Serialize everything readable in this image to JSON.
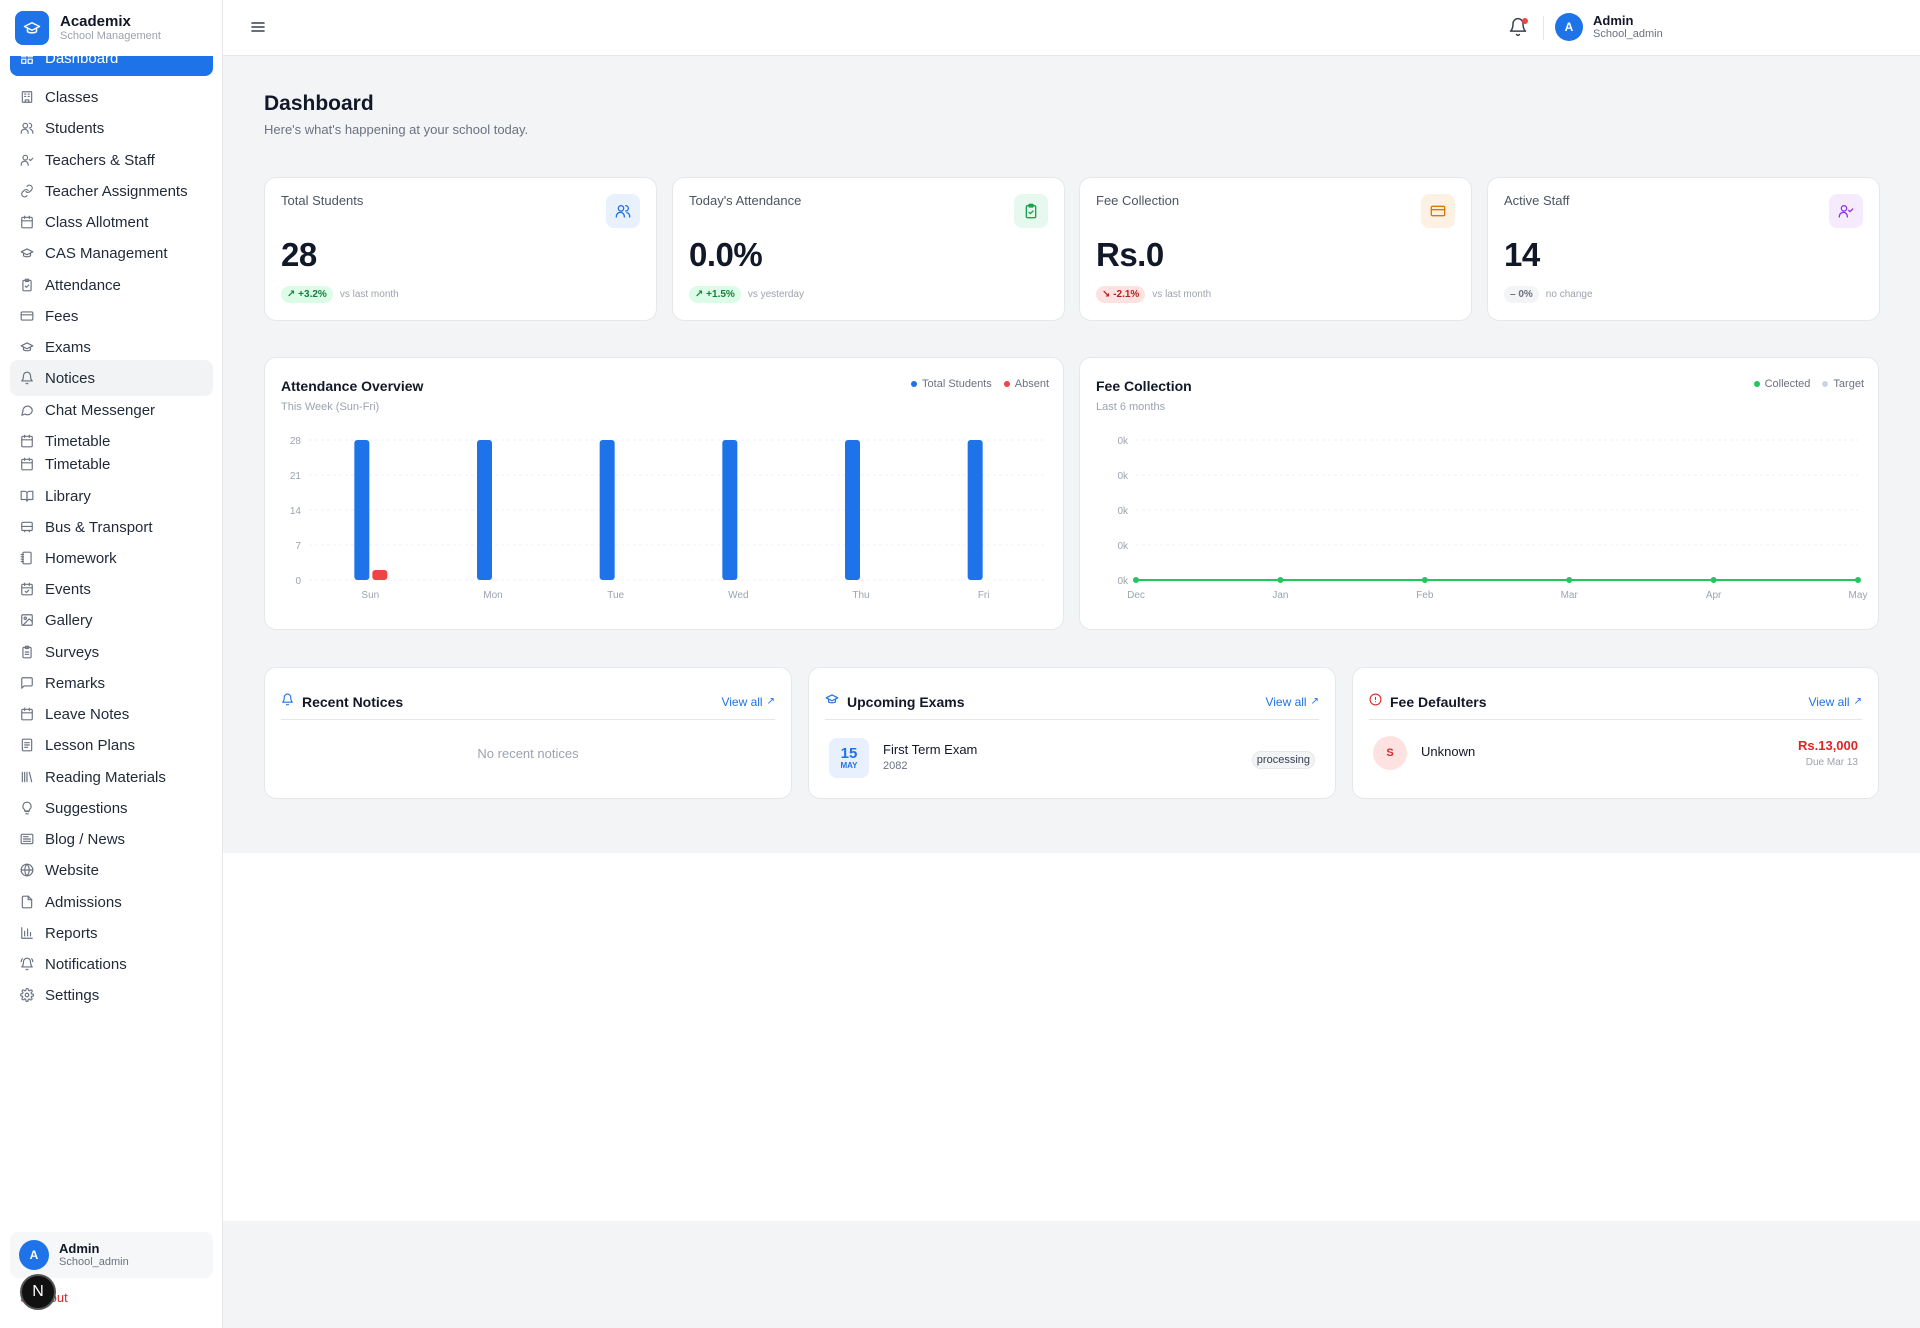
{
  "brand": {
    "name": "Academix",
    "subtitle": "School Management"
  },
  "sidebar": {
    "items": [
      {
        "label": "Dashboard",
        "icon": "dashboard-icon"
      },
      {
        "label": "Classes",
        "icon": "building-icon"
      },
      {
        "label": "Students",
        "icon": "users-icon"
      },
      {
        "label": "Teachers & Staff",
        "icon": "user-check-icon"
      },
      {
        "label": "Teacher Assignments",
        "icon": "link-icon"
      },
      {
        "label": "Class Allotment",
        "icon": "calendar-icon"
      },
      {
        "label": "CAS Management",
        "icon": "graduation-cap-icon"
      },
      {
        "label": "Attendance",
        "icon": "clipboard-check-icon"
      },
      {
        "label": "Fees",
        "icon": "credit-card-icon"
      },
      {
        "label": "Exams",
        "icon": "graduation-cap-icon"
      },
      {
        "label": "Notices",
        "icon": "bell-icon"
      },
      {
        "label": "Chat Messenger",
        "icon": "message-icon"
      },
      {
        "label": "Timetable",
        "icon": "calendar-icon"
      },
      {
        "label": "Timetable",
        "icon": "calendar-icon"
      },
      {
        "label": "Library",
        "icon": "book-icon"
      },
      {
        "label": "Bus & Transport",
        "icon": "bus-icon"
      },
      {
        "label": "Homework",
        "icon": "notebook-icon"
      },
      {
        "label": "Events",
        "icon": "calendar-check-icon"
      },
      {
        "label": "Gallery",
        "icon": "image-icon"
      },
      {
        "label": "Surveys",
        "icon": "clipboard-icon"
      },
      {
        "label": "Remarks",
        "icon": "message-square-icon"
      },
      {
        "label": "Leave Notes",
        "icon": "calendar-icon"
      },
      {
        "label": "Lesson Plans",
        "icon": "file-text-icon"
      },
      {
        "label": "Reading Materials",
        "icon": "library-icon"
      },
      {
        "label": "Suggestions",
        "icon": "lightbulb-icon"
      },
      {
        "label": "Blog / News",
        "icon": "newspaper-icon"
      },
      {
        "label": "Website",
        "icon": "globe-icon"
      },
      {
        "label": "Admissions",
        "icon": "file-icon"
      },
      {
        "label": "Reports",
        "icon": "bar-chart-icon"
      },
      {
        "label": "Notifications",
        "icon": "bell-ring-icon"
      },
      {
        "label": "Settings",
        "icon": "gear-icon"
      }
    ],
    "active_index": 0,
    "hover_index": 10,
    "user": {
      "initial": "A",
      "name": "Admin",
      "role": "School_admin"
    },
    "signout_label": "Sign out"
  },
  "header": {
    "user": {
      "initial": "A",
      "name": "Admin",
      "role": "School_admin"
    }
  },
  "page": {
    "title": "Dashboard",
    "subtitle": "Here's what's happening at your school today."
  },
  "stats": [
    {
      "label": "Total Students",
      "value": "28",
      "change": "+3.2%",
      "trend": "up",
      "note": "vs last month",
      "icon": "users-icon",
      "icon_bg": "#e8f1fd",
      "icon_color": "#1e73e8"
    },
    {
      "label": "Today's Attendance",
      "value": "0.0%",
      "change": "+1.5%",
      "trend": "up",
      "note": "vs yesterday",
      "icon": "clipboard-check-icon",
      "icon_bg": "#e7f8ee",
      "icon_color": "#16a34a"
    },
    {
      "label": "Fee Collection",
      "value": "Rs.0",
      "change": "-2.1%",
      "trend": "down",
      "note": "vs last month",
      "icon": "credit-card-icon",
      "icon_bg": "#fdf1e3",
      "icon_color": "#d97706"
    },
    {
      "label": "Active Staff",
      "value": "14",
      "change": "0%",
      "trend": "flat",
      "note": "no change",
      "icon": "user-check-icon",
      "icon_bg": "#f5ebfc",
      "icon_color": "#9333ea"
    }
  ],
  "attendance_chart": {
    "title": "Attendance Overview",
    "subtitle": "This Week (Sun-Fri)",
    "legend": [
      {
        "label": "Total Students",
        "color": "#1e73e8"
      },
      {
        "label": "Absent",
        "color": "#ef4444"
      }
    ]
  },
  "fee_chart": {
    "title": "Fee Collection",
    "subtitle": "Last 6 months",
    "legend": [
      {
        "label": "Collected",
        "color": "#22c55e"
      },
      {
        "label": "Target",
        "color": "#cbd5e1"
      }
    ]
  },
  "chart_data": [
    {
      "type": "bar",
      "title": "Attendance Overview",
      "categories": [
        "Sun",
        "Mon",
        "Tue",
        "Wed",
        "Thu",
        "Fri"
      ],
      "yticks": [
        "28",
        "21",
        "14",
        "7",
        "0"
      ],
      "ylim": [
        0,
        28
      ],
      "grid": true,
      "legend": "top-right",
      "series": [
        {
          "name": "Total Students",
          "values": [
            28,
            28,
            28,
            28,
            28,
            28
          ],
          "color": "#1e73e8"
        },
        {
          "name": "Absent",
          "values": [
            2,
            0,
            0,
            0,
            0,
            0
          ],
          "color": "#ef4444"
        }
      ]
    },
    {
      "type": "line",
      "title": "Fee Collection",
      "categories": [
        "Dec",
        "Jan",
        "Feb",
        "Mar",
        "Apr",
        "May"
      ],
      "yticks": [
        "0k",
        "0k",
        "0k",
        "0k",
        "0k"
      ],
      "ylim": [
        0,
        1
      ],
      "grid": true,
      "legend": "top-right",
      "series": [
        {
          "name": "Collected",
          "values": [
            0,
            0,
            0,
            0,
            0,
            0
          ],
          "color": "#22c55e"
        },
        {
          "name": "Target",
          "values": [
            0,
            0,
            0,
            0,
            0,
            0
          ],
          "color": "#cbd5e1"
        }
      ]
    }
  ],
  "notices": {
    "title": "Recent Notices",
    "view_all": "View all",
    "empty": "No recent notices"
  },
  "exams": {
    "title": "Upcoming Exams",
    "view_all": "View all",
    "items": [
      {
        "day": "15",
        "month": "MAY",
        "name": "First Term Exam",
        "year": "2082",
        "status": "processing"
      }
    ]
  },
  "defaulters": {
    "title": "Fee Defaulters",
    "view_all": "View all",
    "items": [
      {
        "initial": "S",
        "name": "Unknown",
        "amount": "Rs.13,000",
        "due": "Due Mar 13"
      }
    ]
  }
}
